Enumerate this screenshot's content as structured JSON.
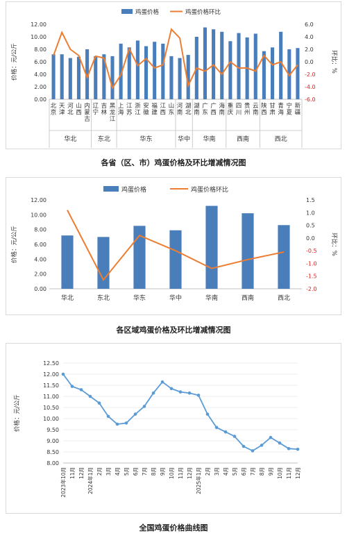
{
  "chart_data": [
    {
      "type": "bar",
      "legend": [
        "鸡蛋价格",
        "鸡蛋价格环比"
      ],
      "ylabel": "价格：元/公斤",
      "y2label": "环比：%",
      "ylim": [
        0,
        12
      ],
      "y2lim": [
        -6,
        6
      ],
      "yticks": [
        "0.00",
        "2.00",
        "4.00",
        "6.00",
        "8.00",
        "10.00",
        "12.00"
      ],
      "y2ticks": [
        "-6.0",
        "-4.0",
        "-2.0",
        "0.0",
        "2.0",
        "4.0",
        "6.0"
      ],
      "categories": [
        "北京",
        "天津",
        "河北",
        "山西",
        "内蒙古",
        "辽宁",
        "吉林",
        "黑龙江",
        "上海",
        "江苏",
        "浙江",
        "安徽",
        "福建",
        "江西",
        "山东",
        "河南",
        "湖北",
        "湖南",
        "广东",
        "广西",
        "海南",
        "重庆",
        "四川",
        "贵州",
        "云南",
        "陕西",
        "甘肃",
        "青海",
        "宁夏",
        "新疆"
      ],
      "groups": [
        {
          "name": "华北",
          "start": 0,
          "end": 4
        },
        {
          "name": "东北",
          "start": 5,
          "end": 7
        },
        {
          "name": "华东",
          "start": 8,
          "end": 14
        },
        {
          "name": "华中",
          "start": 15,
          "end": 16
        },
        {
          "name": "华南",
          "start": 17,
          "end": 20
        },
        {
          "name": "西南",
          "start": 21,
          "end": 24
        },
        {
          "name": "西北",
          "start": 25,
          "end": 29
        }
      ],
      "series": [
        {
          "name": "鸡蛋价格",
          "type": "bar",
          "axis": "left",
          "color": "#4a7ebb",
          "values": [
            7.2,
            7.2,
            6.6,
            6.8,
            8.0,
            6.9,
            7.2,
            6.9,
            8.9,
            8.3,
            9.4,
            8.5,
            9.2,
            8.9,
            6.9,
            6.6,
            7.1,
            10.0,
            11.5,
            11.2,
            10.8,
            9.3,
            10.6,
            9.9,
            10.5,
            7.7,
            8.3,
            10.8,
            8.0,
            8.2
          ]
        },
        {
          "name": "鸡蛋价格环比",
          "type": "line",
          "axis": "right",
          "color": "#ed7d31",
          "values": [
            1.0,
            4.7,
            2.0,
            1.0,
            -2.5,
            0.9,
            0.6,
            -4.2,
            -2.1,
            2.1,
            -0.6,
            0.5,
            -1.0,
            -0.5,
            5.2,
            3.8,
            -3.8,
            -1.0,
            -1.5,
            -0.5,
            -2.0,
            0.0,
            -1.0,
            -1.0,
            -1.5,
            1.0,
            -0.5,
            0.0,
            -2.2,
            -0.5
          ]
        }
      ],
      "caption": "各省（区、市）鸡蛋价格及环比增减情况图"
    },
    {
      "type": "bar",
      "legend": [
        "鸡蛋价格",
        "鸡蛋价格环比"
      ],
      "ylabel": "价格：元/公斤",
      "y2label": "环比：%",
      "ylim": [
        0,
        12
      ],
      "y2lim": [
        -2,
        1.5
      ],
      "yticks": [
        "0.00",
        "2.00",
        "4.00",
        "6.00",
        "8.00",
        "10.00",
        "12.00"
      ],
      "y2ticks": [
        "-2.0",
        "-1.5",
        "-1.0",
        "-0.5",
        "0.0",
        "0.5",
        "1.0",
        "1.5"
      ],
      "categories": [
        "华北",
        "东北",
        "华东",
        "华中",
        "华南",
        "西南",
        "西北"
      ],
      "series": [
        {
          "name": "鸡蛋价格",
          "type": "bar",
          "axis": "left",
          "color": "#4a7ebb",
          "values": [
            7.2,
            7.0,
            8.5,
            7.9,
            11.2,
            10.2,
            8.6
          ]
        },
        {
          "name": "鸡蛋价格环比",
          "type": "line",
          "axis": "right",
          "color": "#ed7d31",
          "values": [
            1.1,
            -1.65,
            0.1,
            -0.5,
            -1.2,
            -0.85,
            -0.55
          ]
        }
      ],
      "caption": "各区域鸡蛋价格及环比增减情况图"
    },
    {
      "type": "line",
      "ylabel": "价格：元/公斤",
      "ylim": [
        8.0,
        12.5
      ],
      "yticks": [
        "8.00",
        "8.50",
        "9.00",
        "9.50",
        "10.00",
        "10.50",
        "11.00",
        "11.50",
        "12.00",
        "12.50"
      ],
      "x": [
        "2023年10月",
        "11月",
        "12月",
        "2024年1月",
        "2月",
        "3月",
        "4月",
        "5月",
        "6月",
        "7月",
        "8月",
        "9月",
        "10月",
        "11月",
        "12月",
        "2025年1月",
        "2月",
        "3月",
        "4月",
        "5月",
        "6月",
        "7月",
        "8月",
        "9月",
        "10月",
        "11月",
        "12月"
      ],
      "series": [
        {
          "name": "全国鸡蛋价格",
          "color": "#5b9bd5",
          "values": [
            12.0,
            11.45,
            11.3,
            11.0,
            10.7,
            10.1,
            9.75,
            9.8,
            10.2,
            10.55,
            11.15,
            11.65,
            11.35,
            11.2,
            11.15,
            11.05,
            10.2,
            9.6,
            9.4,
            9.2,
            8.75,
            8.55,
            8.8,
            9.15,
            8.9,
            8.65,
            8.62
          ]
        }
      ],
      "caption": "全国鸡蛋价格曲线图"
    }
  ]
}
